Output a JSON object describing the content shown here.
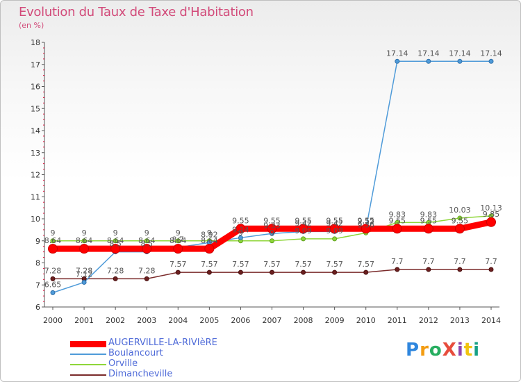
{
  "title": "Evolution du Taux de Taxe d'Habitation",
  "unit_label": "(en %)",
  "logo_text": "ProXiti",
  "chart_data": {
    "type": "line",
    "x": [
      2000,
      2001,
      2002,
      2003,
      2004,
      2005,
      2006,
      2007,
      2008,
      2009,
      2010,
      2011,
      2012,
      2013,
      2014
    ],
    "ylim": [
      6,
      18
    ],
    "yticks": [
      6,
      7,
      8,
      9,
      10,
      11,
      12,
      13,
      14,
      15,
      16,
      17,
      18
    ],
    "grid": false,
    "legend_position": "bottom-left",
    "series": [
      {
        "name": "AUGERVILLE-LA-RIVIèRE",
        "color": "#ff0000",
        "values": [
          8.64,
          8.64,
          8.64,
          8.64,
          8.64,
          8.64,
          9.55,
          9.55,
          9.55,
          9.55,
          9.55,
          9.55,
          9.55,
          9.55,
          9.85
        ],
        "labels": [
          "8.64",
          "8.64",
          "8.64",
          "8.64",
          "8.64",
          "8.64",
          "9.55",
          "9.55",
          "9.55",
          "9.55",
          "9.55",
          "9.55",
          "9.55",
          "9.55",
          "9.85"
        ]
      },
      {
        "name": "Boulancourt",
        "color": "#4f9bd9",
        "values": [
          6.65,
          7.12,
          8.5,
          8.5,
          8.7,
          8.92,
          9.14,
          9.33,
          9.42,
          9.42,
          9.52,
          17.14,
          17.14,
          17.14,
          17.14
        ],
        "labels": [
          "6.65",
          "7.12",
          "8.5",
          "8.5",
          "8.7",
          "8.92",
          "9.14",
          "9.33",
          "9.42",
          "9.42",
          "9.52",
          "17.14",
          "17.14",
          "17.14",
          "17.14"
        ]
      },
      {
        "name": "Orville",
        "color": "#8fd63a",
        "values": [
          9,
          9,
          9,
          9,
          9,
          9,
          9,
          9,
          9.09,
          9.09,
          9.36,
          9.83,
          9.83,
          10.03,
          10.13
        ],
        "labels": [
          "9",
          "9",
          "9",
          "9",
          "9",
          "9",
          "9",
          "9",
          "9.09",
          "9.09",
          "9.36",
          "9.83",
          "9.83",
          "10.03",
          "10.13"
        ]
      },
      {
        "name": "Dimancheville",
        "color": "#7a2a2a",
        "values": [
          7.28,
          7.28,
          7.28,
          7.28,
          7.57,
          7.57,
          7.57,
          7.57,
          7.57,
          7.57,
          7.57,
          7.7,
          7.7,
          7.7,
          7.7
        ],
        "labels": [
          "7.28",
          "7.28",
          "7.28",
          "7.28",
          "7.57",
          "7.57",
          "7.57",
          "7.57",
          "7.57",
          "7.57",
          "7.57",
          "7.7",
          "7.7",
          "7.7",
          "7.7"
        ]
      }
    ]
  }
}
